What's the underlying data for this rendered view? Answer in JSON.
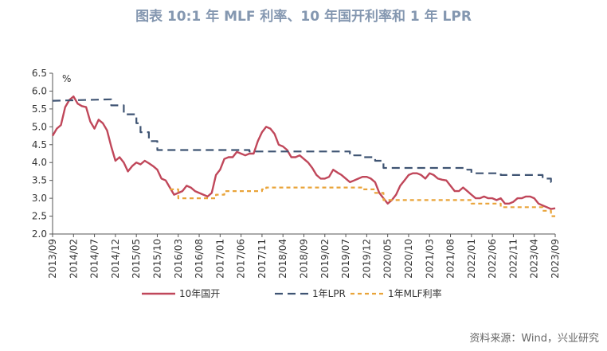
{
  "title": "图表 10:1 年 MLF 利率、10 年国开利率和 1 年 LPR",
  "source": "资料来源：Wind，兴业研究",
  "chart_data": {
    "type": "line",
    "unit": "%",
    "title": "图表 10:1 年 MLF 利率、10 年国开利率和 1 年 LPR",
    "ylim": [
      2.0,
      6.5
    ],
    "yticks": [
      "6.5",
      "6.0",
      "5.5",
      "5.0",
      "4.5",
      "4.0",
      "3.5",
      "3.0",
      "2.5",
      "2.0"
    ],
    "xlim": [
      "2013/09",
      "2023/09"
    ],
    "xticks": [
      "2013/09",
      "2014/02",
      "2014/07",
      "2014/12",
      "2015/05",
      "2015/10",
      "2016/03",
      "2016/08",
      "2017/01",
      "2017/06",
      "2017/11",
      "2018/04",
      "2018/09",
      "2019/02",
      "2019/07",
      "2019/12",
      "2020/05",
      "2020/10",
      "2021/03",
      "2021/08",
      "2022/01",
      "2022/06",
      "2022/11",
      "2023/04",
      "2023/09"
    ],
    "grid": false,
    "legend": "bottom",
    "series": [
      {
        "name": "10年国开",
        "color": "#c0475a",
        "style": "solid",
        "x": [
          "2013/09",
          "2013/10",
          "2013/11",
          "2013/12",
          "2014/01",
          "2014/02",
          "2014/03",
          "2014/04",
          "2014/05",
          "2014/06",
          "2014/07",
          "2014/08",
          "2014/09",
          "2014/10",
          "2014/11",
          "2014/12",
          "2015/01",
          "2015/02",
          "2015/03",
          "2015/04",
          "2015/05",
          "2015/06",
          "2015/07",
          "2015/08",
          "2015/09",
          "2015/10",
          "2015/11",
          "2015/12",
          "2016/01",
          "2016/02",
          "2016/03",
          "2016/04",
          "2016/05",
          "2016/06",
          "2016/07",
          "2016/08",
          "2016/09",
          "2016/10",
          "2016/11",
          "2016/12",
          "2017/01",
          "2017/02",
          "2017/03",
          "2017/04",
          "2017/05",
          "2017/06",
          "2017/07",
          "2017/08",
          "2017/09",
          "2017/10",
          "2017/11",
          "2017/12",
          "2018/01",
          "2018/02",
          "2018/03",
          "2018/04",
          "2018/05",
          "2018/06",
          "2018/07",
          "2018/08",
          "2018/09",
          "2018/10",
          "2018/11",
          "2018/12",
          "2019/01",
          "2019/02",
          "2019/03",
          "2019/04",
          "2019/05",
          "2019/06",
          "2019/07",
          "2019/08",
          "2019/09",
          "2019/10",
          "2019/11",
          "2019/12",
          "2020/01",
          "2020/02",
          "2020/03",
          "2020/04",
          "2020/05",
          "2020/06",
          "2020/07",
          "2020/08",
          "2020/09",
          "2020/10",
          "2020/11",
          "2020/12",
          "2021/01",
          "2021/02",
          "2021/03",
          "2021/04",
          "2021/05",
          "2021/06",
          "2021/07",
          "2021/08",
          "2021/09",
          "2021/10",
          "2021/11",
          "2021/12",
          "2022/01",
          "2022/02",
          "2022/03",
          "2022/04",
          "2022/05",
          "2022/06",
          "2022/07",
          "2022/08",
          "2022/09",
          "2022/10",
          "2022/11",
          "2022/12",
          "2023/01",
          "2023/02",
          "2023/03",
          "2023/04",
          "2023/05",
          "2023/06",
          "2023/07",
          "2023/08",
          "2023/09"
        ],
        "values": [
          4.75,
          4.95,
          5.05,
          5.55,
          5.75,
          5.85,
          5.65,
          5.58,
          5.55,
          5.15,
          4.95,
          5.2,
          5.1,
          4.9,
          4.45,
          4.05,
          4.15,
          4.0,
          3.75,
          3.9,
          4.0,
          3.95,
          4.05,
          3.98,
          3.9,
          3.8,
          3.55,
          3.5,
          3.3,
          3.1,
          3.15,
          3.2,
          3.35,
          3.3,
          3.2,
          3.15,
          3.1,
          3.05,
          3.15,
          3.65,
          3.8,
          4.1,
          4.15,
          4.15,
          4.3,
          4.25,
          4.2,
          4.25,
          4.25,
          4.6,
          4.85,
          5.0,
          4.95,
          4.8,
          4.5,
          4.45,
          4.35,
          4.15,
          4.15,
          4.2,
          4.1,
          4.0,
          3.85,
          3.65,
          3.55,
          3.55,
          3.6,
          3.8,
          3.72,
          3.65,
          3.55,
          3.45,
          3.5,
          3.55,
          3.6,
          3.6,
          3.55,
          3.45,
          3.15,
          3.0,
          2.85,
          2.95,
          3.1,
          3.35,
          3.5,
          3.65,
          3.7,
          3.7,
          3.65,
          3.55,
          3.7,
          3.65,
          3.55,
          3.52,
          3.5,
          3.35,
          3.2,
          3.2,
          3.3,
          3.2,
          3.1,
          3.0,
          3.0,
          3.05,
          3.0,
          3.0,
          2.95,
          3.0,
          2.85,
          2.85,
          2.9,
          3.0,
          3.0,
          3.05,
          3.05,
          3.0,
          2.85,
          2.8,
          2.75,
          2.7,
          2.72
        ]
      },
      {
        "name": "1年LPR",
        "color": "#3f5473",
        "style": "long-dash",
        "x": [
          "2013/09",
          "2014/11",
          "2014/11",
          "2015/02",
          "2015/02",
          "2015/05",
          "2015/05",
          "2015/06",
          "2015/06",
          "2015/08",
          "2015/08",
          "2015/10",
          "2015/10",
          "2017/08",
          "2017/08",
          "2019/08",
          "2019/08",
          "2019/09",
          "2019/09",
          "2019/11",
          "2019/11",
          "2020/02",
          "2020/02",
          "2020/04",
          "2020/04",
          "2021/12",
          "2021/12",
          "2022/01",
          "2022/01",
          "2022/08",
          "2022/08",
          "2023/06",
          "2023/06",
          "2023/08",
          "2023/08",
          "2023/09"
        ],
        "values": [
          5.73,
          5.77,
          5.6,
          5.6,
          5.35,
          5.35,
          5.1,
          5.1,
          4.85,
          4.85,
          4.6,
          4.6,
          4.35,
          4.35,
          4.31,
          4.31,
          4.25,
          4.25,
          4.2,
          4.2,
          4.15,
          4.15,
          4.05,
          4.05,
          3.85,
          3.85,
          3.8,
          3.8,
          3.7,
          3.7,
          3.65,
          3.65,
          3.55,
          3.55,
          3.45,
          3.45
        ]
      },
      {
        "name": "1年MLF利率",
        "color": "#e9a43a",
        "style": "short-dash",
        "x": [
          "2016/01",
          "2016/03",
          "2016/03",
          "2016/12",
          "2016/12",
          "2017/02",
          "2017/02",
          "2017/03",
          "2017/03",
          "2017/11",
          "2017/11",
          "2017/12",
          "2017/12",
          "2019/11",
          "2019/11",
          "2020/02",
          "2020/02",
          "2020/04",
          "2020/04",
          "2021/11",
          "2021/11",
          "2021/12",
          "2021/12",
          "2022/01",
          "2022/01",
          "2022/08",
          "2022/08",
          "2023/06",
          "2023/06",
          "2023/08",
          "2023/08",
          "2023/09"
        ],
        "values": [
          3.25,
          3.25,
          3.0,
          3.0,
          3.1,
          3.1,
          3.2,
          3.2,
          3.2,
          3.2,
          3.25,
          3.25,
          3.3,
          3.3,
          3.25,
          3.25,
          3.15,
          3.15,
          2.95,
          2.95,
          2.95,
          2.95,
          2.95,
          2.95,
          2.85,
          2.85,
          2.75,
          2.75,
          2.65,
          2.65,
          2.5,
          2.5
        ]
      }
    ]
  }
}
